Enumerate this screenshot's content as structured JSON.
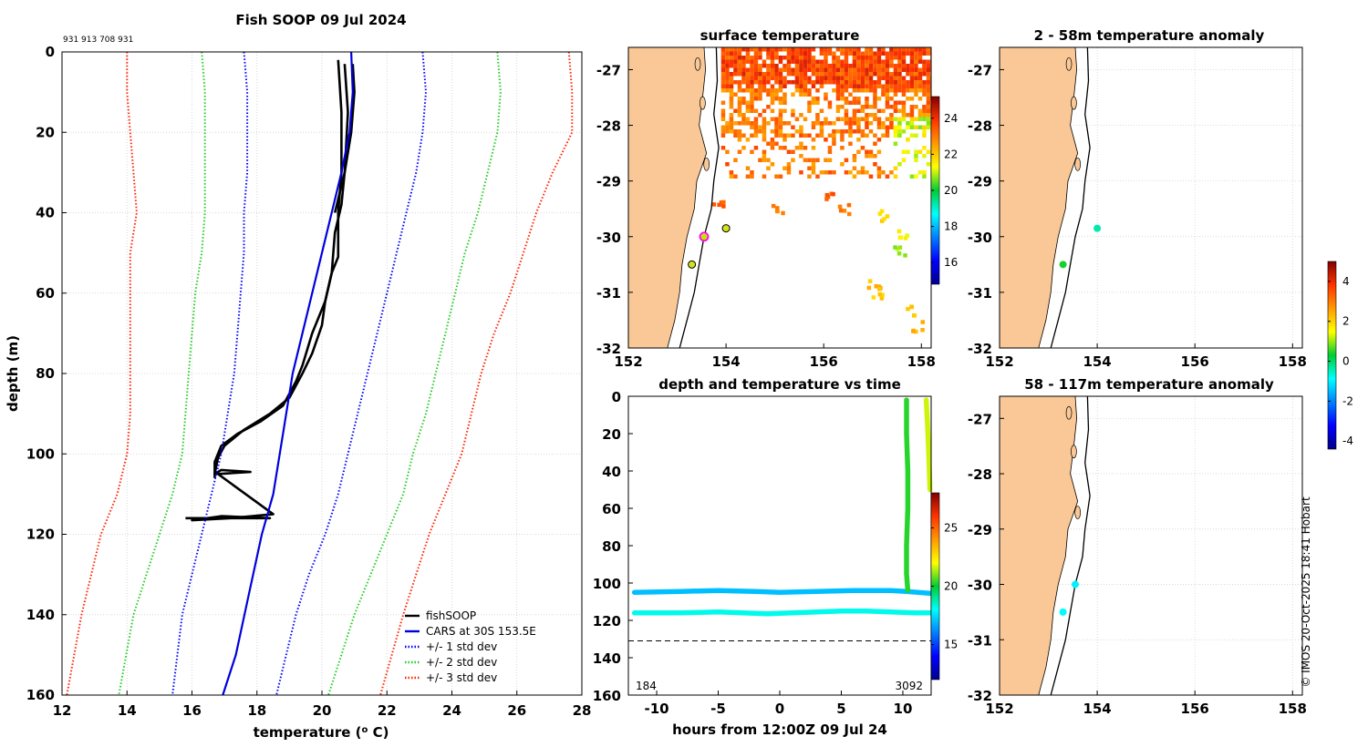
{
  "figure": {
    "main_title": "Fish SOOP 09 Jul 2024",
    "sensor_ids": "931 913 708 931",
    "copyright": "© IMOS 20-Oct-2025 18:41 Hobart"
  },
  "colors": {
    "fish": "#000000",
    "cars": "#0000dd",
    "std1": "#0000ff",
    "std2": "#22cc22",
    "std3": "#ff2200",
    "land": "#f9c896",
    "grid": "#cccccc"
  },
  "chart_data": [
    {
      "id": "profile",
      "type": "line",
      "title": "",
      "xlabel": "temperature (o C)",
      "ylabel": "depth (m)",
      "xlim": [
        12,
        28
      ],
      "ylim": [
        160,
        0
      ],
      "xticks": [
        12,
        14,
        16,
        18,
        20,
        22,
        24,
        26,
        28
      ],
      "yticks": [
        0,
        20,
        40,
        60,
        80,
        100,
        120,
        140,
        160
      ],
      "legend_position": "bottom-right",
      "legend": [
        "fishSOOP",
        "CARS at 30S 153.5E",
        "+/- 1 std dev",
        "+/- 2 std dev",
        "+/- 3 std dev"
      ],
      "series": [
        {
          "name": "fishSOOP",
          "style": "solid",
          "color_key": "fish",
          "x": [
            20.7,
            20.8,
            20.7,
            20.6,
            20.4,
            20.3,
            20.1,
            20.0,
            19.7,
            19.4,
            19.0,
            18.4,
            17.6,
            17.0,
            16.8,
            16.7,
            16.9,
            17.8,
            16.8,
            18.5,
            17.2,
            16.0,
            16.9,
            18.4,
            15.8
          ],
          "y": [
            3,
            15,
            30,
            38,
            45,
            55,
            62,
            68,
            75,
            80,
            86,
            90,
            94,
            98,
            101,
            105,
            104,
            104.5,
            105,
            115,
            116,
            116.5,
            115.5,
            116,
            116
          ]
        },
        {
          "name": "fishSOOP",
          "style": "solid",
          "color_key": "fish",
          "x": [
            20.5,
            20.6,
            20.6,
            20.5,
            20.5,
            20.3,
            20.1,
            19.7,
            19.4,
            19.2,
            18.8,
            18.1,
            17.4,
            16.9,
            16.7,
            16.7
          ],
          "y": [
            2,
            15,
            30,
            40,
            51,
            55,
            62,
            70,
            78,
            82,
            88,
            92,
            95,
            98,
            102,
            106
          ]
        },
        {
          "name": "fishSOOP",
          "style": "solid",
          "color_key": "fish",
          "x": [
            20.95,
            21.0,
            20.9,
            20.7,
            20.4
          ],
          "y": [
            3,
            10,
            20,
            30,
            40
          ]
        },
        {
          "name": "CARS at 30S 153.5E",
          "style": "solid",
          "color_key": "cars",
          "x": [
            20.9,
            20.95,
            20.85,
            20.6,
            20.3,
            20.0,
            19.7,
            19.4,
            19.1,
            18.8,
            18.5,
            18.15,
            17.75,
            17.35,
            16.95
          ],
          "y": [
            0,
            10,
            20,
            30,
            40,
            50,
            60,
            70,
            80,
            95,
            110,
            120,
            135,
            150,
            160
          ]
        },
        {
          "name": "+/- 1 std dev",
          "style": "dotted",
          "color_key": "std1",
          "x": [
            17.6,
            17.7,
            17.7,
            17.7,
            17.6,
            17.6,
            17.5,
            17.4,
            17.3,
            17.1,
            16.9,
            16.6,
            16.3,
            16.0,
            15.7,
            15.4
          ],
          "y": [
            0,
            10,
            20,
            30,
            40,
            50,
            60,
            70,
            80,
            90,
            100,
            110,
            120,
            130,
            140,
            160
          ]
        },
        {
          "name": "+/- 1 std dev",
          "style": "dotted",
          "color_key": "std1",
          "x": [
            23.1,
            23.2,
            23.1,
            22.9,
            22.6,
            22.3,
            22.0,
            21.7,
            21.4,
            21.1,
            20.8,
            20.5,
            20.1,
            19.6,
            19.2,
            18.6
          ],
          "y": [
            0,
            10,
            20,
            30,
            40,
            50,
            60,
            70,
            80,
            90,
            100,
            110,
            120,
            130,
            140,
            160
          ]
        },
        {
          "name": "+/- 2 std dev",
          "style": "dotted",
          "color_key": "std2",
          "x": [
            16.3,
            16.4,
            16.4,
            16.4,
            16.4,
            16.3,
            16.1,
            16.0,
            15.9,
            15.8,
            15.7,
            15.4,
            15.0,
            14.6,
            14.2,
            13.75
          ],
          "y": [
            0,
            10,
            20,
            30,
            40,
            50,
            60,
            70,
            80,
            90,
            100,
            110,
            120,
            130,
            140,
            160
          ]
        },
        {
          "name": "+/- 2 std dev",
          "style": "dotted",
          "color_key": "std2",
          "x": [
            25.4,
            25.5,
            25.4,
            25.1,
            24.8,
            24.4,
            24.1,
            23.8,
            23.5,
            23.2,
            22.8,
            22.5,
            22.0,
            21.5,
            21.0,
            20.2
          ],
          "y": [
            0,
            10,
            20,
            30,
            40,
            50,
            60,
            70,
            80,
            90,
            100,
            110,
            120,
            130,
            140,
            160
          ]
        },
        {
          "name": "+/- 3 std dev",
          "style": "dotted",
          "color_key": "std3",
          "x": [
            14.0,
            14.0,
            14.1,
            14.2,
            14.3,
            14.1,
            14.1,
            14.1,
            14.1,
            14.1,
            14.0,
            13.7,
            13.2,
            12.9,
            12.6,
            12.15
          ],
          "y": [
            0,
            10,
            20,
            30,
            40,
            50,
            60,
            70,
            80,
            90,
            100,
            110,
            120,
            130,
            140,
            160
          ]
        },
        {
          "name": "+/- 3 std dev",
          "style": "dotted",
          "color_key": "std3",
          "x": [
            27.6,
            27.7,
            27.7,
            27.1,
            26.6,
            26.2,
            25.8,
            25.3,
            24.9,
            24.6,
            24.3,
            23.8,
            23.3,
            22.9,
            22.5,
            21.8
          ],
          "y": [
            0,
            10,
            20,
            30,
            40,
            50,
            60,
            70,
            80,
            90,
            100,
            110,
            120,
            130,
            140,
            160
          ]
        }
      ]
    },
    {
      "id": "sst",
      "type": "heatmap",
      "title": "surface temperature",
      "xlim": [
        152,
        158.2
      ],
      "ylim": [
        -32,
        -26.6
      ],
      "xticks": [
        152,
        154,
        156,
        158
      ],
      "yticks": [
        -27,
        -28,
        -29,
        -30,
        -31,
        -32
      ],
      "colorbar": {
        "min": 14.8,
        "max": 25.2,
        "ticks": [
          16,
          18,
          20,
          22,
          24
        ]
      },
      "markers": [
        {
          "lon": 153.55,
          "lat": -30.0,
          "style": "magenta-ring"
        },
        {
          "lon": 154.0,
          "lat": -29.85,
          "style": "yellow-dot"
        },
        {
          "lon": 153.3,
          "lat": -30.5,
          "style": "yellow-dot"
        }
      ]
    },
    {
      "id": "timeseries",
      "type": "scatter",
      "title": "depth and temperature vs time",
      "xlabel": "hours from 12:00Z 09 Jul 24",
      "xlim": [
        -12.3,
        12.3
      ],
      "ylim": [
        160,
        0
      ],
      "xticks": [
        -10,
        -5,
        0,
        5,
        10
      ],
      "yticks": [
        0,
        20,
        40,
        60,
        80,
        100,
        120,
        140,
        160
      ],
      "reference_depth": 131,
      "corner_labels": {
        "left": "184",
        "right": "3092"
      },
      "colorbar": {
        "min": 12,
        "max": 28,
        "ticks": [
          15,
          20,
          25
        ]
      },
      "tracks": [
        {
          "t": [
            -11.8,
            -8,
            -5,
            -2,
            0,
            3,
            6,
            9,
            10.3,
            12.2
          ],
          "depth": [
            105,
            104.5,
            104,
            104.5,
            105,
            104.5,
            104,
            104,
            104.5,
            105.5
          ],
          "temp": 17.0
        },
        {
          "t": [
            -11.8,
            -8,
            -5,
            -3,
            -1,
            1,
            3,
            5,
            7,
            9,
            11,
            12.2
          ],
          "depth": [
            116,
            116,
            115.5,
            116,
            116.5,
            116,
            115.5,
            115,
            115,
            115.5,
            116,
            116
          ],
          "temp": 18.2
        },
        {
          "t": [
            10.3,
            10.3,
            10.4,
            10.4,
            10.3,
            10.3,
            10.4
          ],
          "depth": [
            2,
            20,
            40,
            60,
            80,
            95,
            104
          ],
          "temp": 20.3
        },
        {
          "t": [
            11.9,
            12.0,
            12.1,
            12.2
          ],
          "depth": [
            2,
            15,
            30,
            50
          ],
          "temp": 21.6
        }
      ]
    },
    {
      "id": "anom_shallow",
      "type": "scatter",
      "title": "2 - 58m temperature anomaly",
      "xlim": [
        152,
        158.2
      ],
      "ylim": [
        -32,
        -26.6
      ],
      "xticks": [
        152,
        154,
        156,
        158
      ],
      "yticks": [
        -27,
        -28,
        -29,
        -30,
        -31,
        -32
      ],
      "points": [
        {
          "lon": 154.0,
          "lat": -29.85,
          "anomaly": -0.4
        },
        {
          "lon": 153.3,
          "lat": -30.5,
          "anomaly": 0.4
        }
      ]
    },
    {
      "id": "anom_deep",
      "type": "scatter",
      "title": "58 - 117m temperature anomaly",
      "xlim": [
        152,
        158.2
      ],
      "ylim": [
        -32,
        -26.6
      ],
      "xticks": [
        152,
        154,
        156,
        158
      ],
      "yticks": [
        -27,
        -28,
        -29,
        -30,
        -31,
        -32
      ],
      "points": [
        {
          "lon": 153.55,
          "lat": -30.0,
          "anomaly": -1.0
        },
        {
          "lon": 153.3,
          "lat": -30.5,
          "anomaly": -0.9
        }
      ]
    },
    {
      "id": "anom_colorbar",
      "type": "heatmap",
      "colorbar": {
        "min": -4.4,
        "max": 5.0,
        "ticks": [
          4,
          2,
          0,
          -2,
          -4
        ]
      }
    }
  ]
}
